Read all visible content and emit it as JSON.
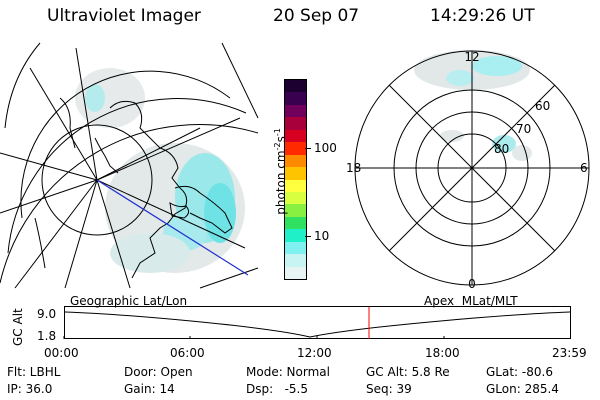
{
  "header": {
    "instrument": "Ultraviolet Imager",
    "date": "20 Sep 07",
    "time": "14:29:26 UT"
  },
  "colorbar": {
    "label": "photon cm",
    "label_exp1": "-2",
    "label_mid": "s",
    "label_exp2": "-1",
    "ticks": [
      "100",
      "10"
    ],
    "colors": [
      "#1c0030",
      "#3a0050",
      "#70005c",
      "#a8003a",
      "#d80020",
      "#ff2a00",
      "#ff8a00",
      "#ffc400",
      "#ffff40",
      "#d8ff40",
      "#88f040",
      "#30e060",
      "#20f0c8",
      "#80f0f0",
      "#c8f4f4",
      "#e8f4f4"
    ]
  },
  "geo_map": {
    "label": "Geographic Lat/Lon"
  },
  "polar_plot": {
    "label": "Apex  MLat/MLT",
    "mlt_labels": [
      "12",
      "18",
      "6",
      "0"
    ],
    "lat_labels": [
      "60",
      "70",
      "80"
    ]
  },
  "altitude_plot": {
    "ylabel": "GC Alt",
    "y_ticks": [
      "9.0",
      "1.8"
    ],
    "x_ticks": [
      "00:00",
      "06:00",
      "12:00",
      "18:00",
      "23:59"
    ],
    "marker_color": "#ff0000"
  },
  "info_rows": [
    [
      "Flt: LBHL",
      "Door: Open",
      "Mode: Normal",
      "GC Alt: 5.8 Re",
      "GLat: -80.6"
    ],
    [
      "IP: 36.0",
      "Gain: 14",
      "Dsp:   -5.5",
      "Seq: 39",
      "GLon: 285.4"
    ]
  ],
  "colors": {
    "aurora_cyan": "#7fe8ec",
    "aurora_gray": "#dfe6e6",
    "track_blue": "#2030d0"
  }
}
